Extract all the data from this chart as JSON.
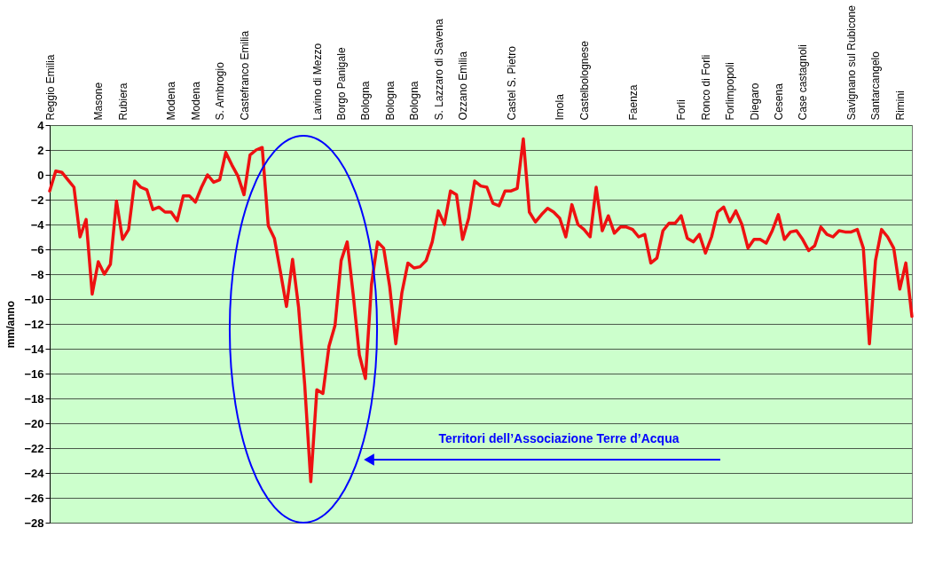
{
  "chart_data": {
    "type": "line",
    "ylabel": "mm/anno",
    "color": "#ee1111",
    "ylim": [
      -28,
      4
    ],
    "yticks": [
      -28,
      -26,
      -24,
      -22,
      -20,
      -18,
      -16,
      -14,
      -12,
      -10,
      -8,
      -6,
      -4,
      -2,
      0,
      2,
      4
    ],
    "grid": "y",
    "marker": "none",
    "line_style": "solid",
    "annotations": [
      "Territori dell’Associazione Terre d’Acqua"
    ],
    "categories": [
      "Reggio Emilia",
      null,
      null,
      null,
      null,
      null,
      null,
      null,
      "Masone",
      null,
      null,
      null,
      "Rubiera",
      null,
      null,
      null,
      null,
      null,
      null,
      null,
      "Modena",
      null,
      null,
      null,
      "Modena",
      null,
      null,
      null,
      "S. Ambrogio",
      null,
      null,
      null,
      "Castefranco Emilia",
      null,
      null,
      null,
      null,
      null,
      null,
      null,
      null,
      null,
      null,
      null,
      "Lavino di Mezzo",
      null,
      null,
      null,
      "Borgo Panigale",
      null,
      null,
      null,
      "Bologna",
      null,
      null,
      null,
      "Bologna",
      null,
      null,
      null,
      "Bologna",
      null,
      null,
      null,
      "S. Lazzaro di Savena",
      null,
      null,
      null,
      "Ozzano Emilia",
      null,
      null,
      null,
      null,
      null,
      null,
      null,
      "Castel S. Pietro",
      null,
      null,
      null,
      null,
      null,
      null,
      null,
      "Imola",
      null,
      null,
      null,
      "Castelbolognese",
      null,
      null,
      null,
      null,
      null,
      null,
      null,
      "Faenza",
      null,
      null,
      null,
      null,
      null,
      null,
      null,
      "Forli",
      null,
      null,
      null,
      "Ronco di Forli",
      null,
      null,
      null,
      "Forlimpopoli",
      null,
      null,
      null,
      "Diegaro",
      null,
      null,
      null,
      "Cesena",
      null,
      null,
      null,
      "Case castagnoli",
      null,
      null,
      null,
      null,
      null,
      null,
      null,
      "Savignano sul Rubicone",
      null,
      null,
      null,
      "Santarcangelo",
      null,
      null,
      null,
      "Rimini",
      null,
      null
    ],
    "values": [
      -1.3,
      0.3,
      0.2,
      -0.4,
      -1.0,
      -5.0,
      -3.6,
      -9.6,
      -7.0,
      -8.0,
      -7.2,
      -2.1,
      -5.2,
      -4.4,
      -0.5,
      -1.0,
      -1.2,
      -2.8,
      -2.6,
      -3.0,
      -3.0,
      -3.7,
      -1.7,
      -1.7,
      -2.2,
      -1.0,
      0.0,
      -0.6,
      -0.4,
      1.8,
      0.8,
      -0.1,
      -1.6,
      1.6,
      2.0,
      2.2,
      -4.1,
      -5.1,
      -7.8,
      -10.6,
      -6.8,
      -10.7,
      -16.9,
      -24.7,
      -17.3,
      -17.6,
      -13.8,
      -12.1,
      -6.9,
      -5.4,
      -9.7,
      -14.5,
      -16.4,
      -8.8,
      -5.4,
      -5.9,
      -9.0,
      -13.6,
      -9.5,
      -7.1,
      -7.5,
      -7.4,
      -6.9,
      -5.4,
      -2.9,
      -4.0,
      -1.3,
      -1.6,
      -5.2,
      -3.5,
      -0.5,
      -0.9,
      -1.0,
      -2.3,
      -2.5,
      -1.3,
      -1.3,
      -1.1,
      2.9,
      -3.0,
      -3.8,
      -3.2,
      -2.7,
      -3.0,
      -3.5,
      -5.0,
      -2.4,
      -4.0,
      -4.4,
      -5.0,
      -1.0,
      -4.5,
      -3.3,
      -4.7,
      -4.2,
      -4.2,
      -4.4,
      -5.0,
      -4.8,
      -7.1,
      -6.7,
      -4.5,
      -3.9,
      -3.9,
      -3.3,
      -5.1,
      -5.4,
      -4.8,
      -6.3,
      -5.0,
      -3.0,
      -2.6,
      -3.8,
      -2.9,
      -4.0,
      -5.9,
      -5.2,
      -5.2,
      -5.5,
      -4.5,
      -3.2,
      -5.2,
      -4.6,
      -4.5,
      -5.2,
      -6.1,
      -5.7,
      -4.2,
      -4.8,
      -5.0,
      -4.5,
      -4.6,
      -4.6,
      -4.4,
      -5.9,
      -13.6,
      -6.9,
      -4.4,
      -5.0,
      -5.9,
      -9.2,
      -7.1,
      -11.4
    ]
  }
}
